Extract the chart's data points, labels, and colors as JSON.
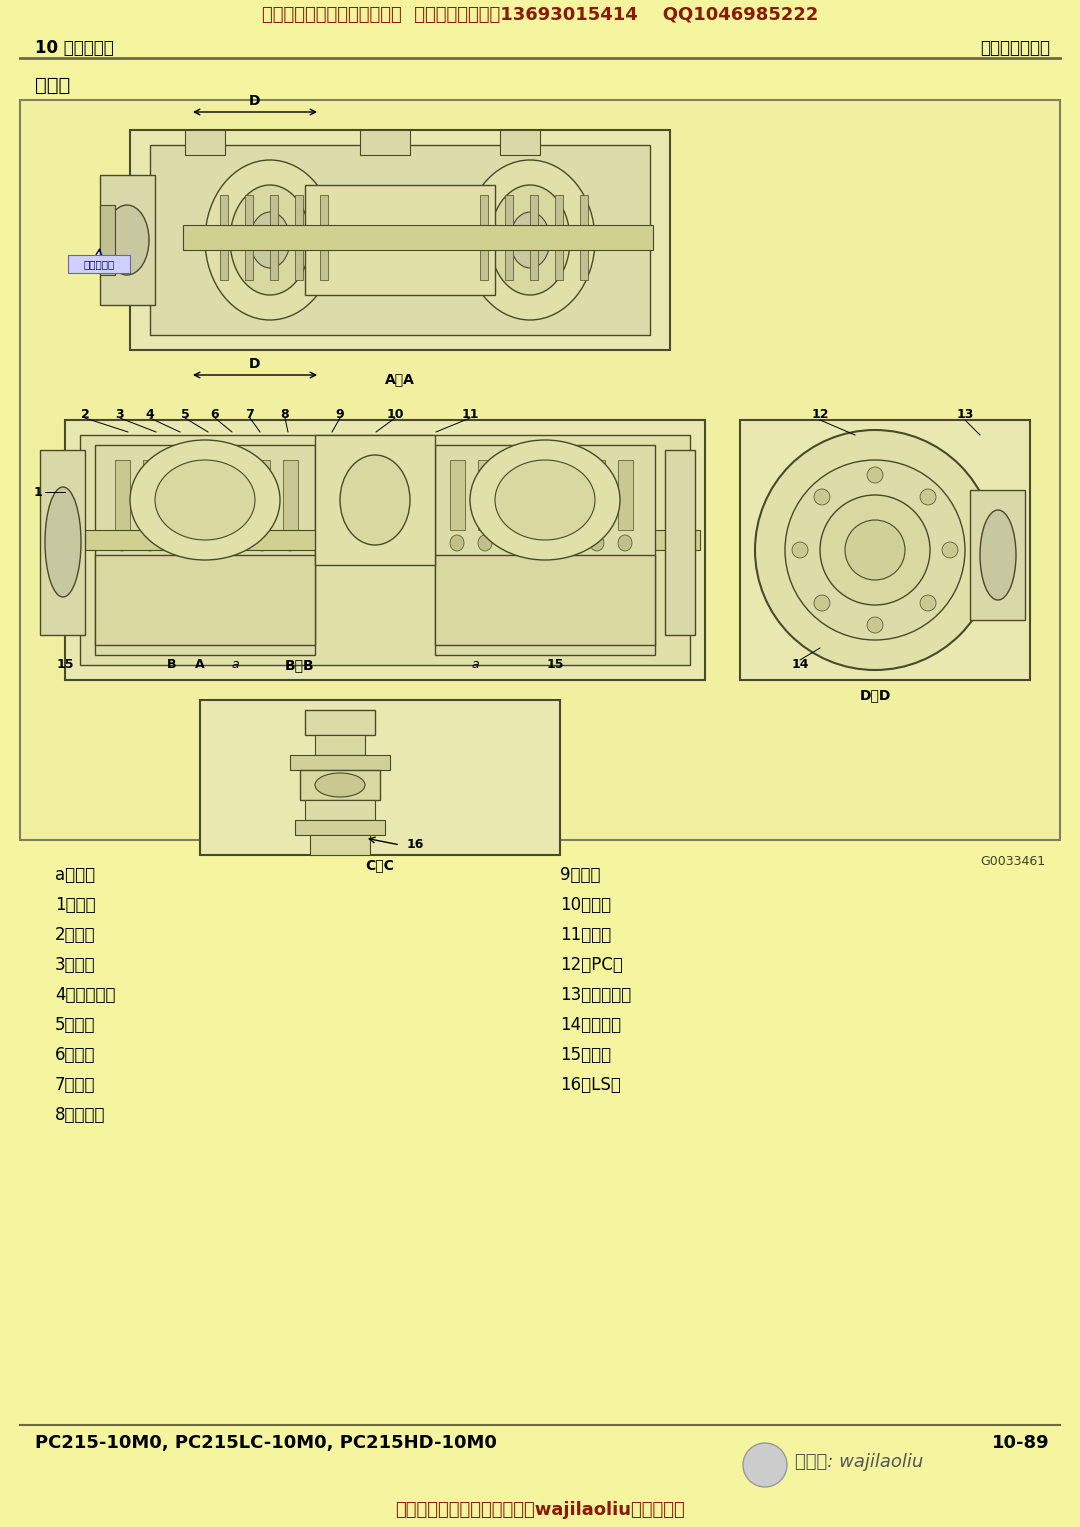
{
  "bg_color": "#f5f5a0",
  "header_text": "挖机老刘一提供挖机维修资料  电话（微信同号）13693015414    QQ1046985222",
  "header_color": "#8B1A00",
  "left_header": "10 结构和功能",
  "right_header": "液压系统零部件",
  "header_text_color": "#000000",
  "section_title": "剖视图",
  "diagram_border_color": "#808060",
  "label_color": "#000000",
  "legend_left": [
    "a：花键",
    "1：前轴",
    "2：托架",
    "3：前壳",
    "4：摆动凸轮",
    "5：滑靴",
    "6：活塞",
    "7：缸体",
    "8：配油盘"
  ],
  "legend_right": [
    "9：端盖",
    "10：后轴",
    "11：后壳",
    "12：PC阀",
    "13：伺服活塞",
    "14：滑动器",
    "15：轴承",
    "16：LS阀"
  ],
  "footer_left": "PC215-10M0, PC215LC-10M0, PC215HD-10M0",
  "footer_right": "10-89",
  "footer_bottom": "看免费维修资料、搜索关注：wajilaoliu微信公众号",
  "watermark_text": "微信号: wajilaoliu",
  "drawing_number": "G0033461",
  "clockwise_label": "顺时针旋转",
  "line_color": "#808060"
}
